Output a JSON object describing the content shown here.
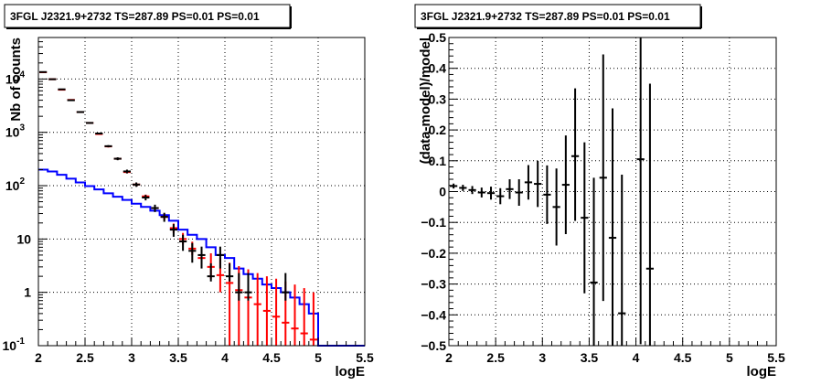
{
  "colors": {
    "data": "#000000",
    "model": "#ff0000",
    "source": "#0000ff",
    "frame": "#000000",
    "grid": "#000000"
  },
  "chart_data": [
    {
      "type": "line",
      "title": "3FGL J2321.9+2732 TS=287.89 PS=0.01 PS=0.01",
      "xlabel": "logE",
      "ylabel": "Nb of counts",
      "xlim": [
        2,
        5.5
      ],
      "ylim": [
        0.1,
        60000
      ],
      "yscale": "log",
      "grid": true,
      "x_ticks": [
        "2",
        "2.5",
        "3",
        "3.5",
        "4",
        "4.5",
        "5",
        "5.5"
      ],
      "y_ticks": [
        {
          "v": 0.1,
          "base": "10",
          "exp": "-1"
        },
        {
          "v": 1,
          "base": "1",
          "exp": ""
        },
        {
          "v": 10,
          "base": "10",
          "exp": ""
        },
        {
          "v": 100,
          "base": "10",
          "exp": "2"
        },
        {
          "v": 1000,
          "base": "10",
          "exp": "3"
        },
        {
          "v": 10000,
          "base": "10",
          "exp": "4"
        }
      ],
      "series": [
        {
          "role": "data",
          "x": [
            2.05,
            2.15,
            2.25,
            2.35,
            2.45,
            2.55,
            2.65,
            2.75,
            2.85,
            2.95,
            3.05,
            3.15,
            3.25,
            3.35,
            3.45,
            3.55,
            3.65,
            3.75,
            3.85,
            3.95,
            4.05,
            4.15,
            4.25,
            4.35,
            4.45,
            4.55,
            4.65
          ],
          "y": [
            13500,
            9900,
            6400,
            4000,
            2400,
            1500,
            950,
            550,
            320,
            185,
            105,
            60,
            38,
            26,
            15,
            9,
            6,
            5,
            2,
            5,
            2,
            1,
            1,
            null,
            null,
            null,
            1
          ],
          "yerr_low": [
            13300,
            9800,
            6320,
            3940,
            2350,
            1460,
            920,
            525,
            300,
            170,
            95,
            53,
            32,
            21,
            11,
            6,
            3.6,
            2.8,
            1.6,
            2.8,
            1.6,
            0.7,
            0.7,
            null,
            null,
            null,
            0.7
          ],
          "yerr_high": [
            13700,
            10000,
            6480,
            4060,
            2450,
            1540,
            980,
            575,
            340,
            200,
            115,
            67,
            44,
            31,
            19,
            12,
            8.4,
            7.2,
            3.5,
            7.2,
            3.5,
            2.3,
            2.3,
            null,
            null,
            null,
            2.3
          ]
        },
        {
          "role": "model",
          "x": [
            2.05,
            2.15,
            2.25,
            2.35,
            2.45,
            2.55,
            2.65,
            2.75,
            2.85,
            2.95,
            3.05,
            3.15,
            3.25,
            3.35,
            3.45,
            3.55,
            3.65,
            3.75,
            3.85,
            3.95,
            4.05,
            4.15,
            4.25,
            4.35,
            4.45,
            4.55,
            4.65,
            4.75,
            4.85,
            4.95
          ],
          "y": [
            13400,
            9900,
            6300,
            4050,
            2400,
            1500,
            930,
            545,
            320,
            180,
            105,
            63,
            38,
            26,
            16,
            10,
            6.6,
            4.4,
            3.0,
            2.1,
            1.5,
            1.1,
            0.8,
            0.6,
            0.45,
            0.35,
            0.27,
            0.21,
            0.17,
            0.13
          ],
          "yerr_low": [
            13250,
            9780,
            6200,
            3980,
            2350,
            1460,
            900,
            520,
            305,
            170,
            98,
            58,
            34,
            22.5,
            13,
            7.9,
            5.0,
            3.0,
            1.8,
            1.0,
            0.1,
            0.1,
            0.1,
            0.1,
            0.1,
            0.1,
            0.1,
            0.1,
            0.1,
            0.1
          ],
          "yerr_high": [
            13550,
            10020,
            6400,
            4120,
            2450,
            1540,
            960,
            570,
            335,
            190,
            112,
            68,
            42,
            30,
            19.5,
            13,
            8.9,
            6.8,
            5.4,
            4.4,
            3.6,
            3.1,
            2.7,
            2.3,
            2.0,
            1.8,
            1.6,
            1.4,
            1.2,
            1.0
          ]
        },
        {
          "role": "source",
          "edges": [
            2.0,
            2.1,
            2.2,
            2.3,
            2.4,
            2.5,
            2.6,
            2.7,
            2.8,
            2.9,
            3.0,
            3.1,
            3.2,
            3.3,
            3.4,
            3.5,
            3.6,
            3.7,
            3.8,
            3.9,
            4.0,
            4.1,
            4.2,
            4.3,
            4.4,
            4.5,
            4.6,
            4.7,
            4.8,
            4.9,
            5.0,
            5.1,
            5.2,
            5.3,
            5.4,
            5.5
          ],
          "y": [
            200,
            185,
            160,
            135,
            115,
            98,
            85,
            72,
            62,
            54,
            46,
            40,
            34,
            28,
            22,
            15,
            12,
            10,
            7,
            5,
            4.4,
            2.8,
            2.2,
            1.8,
            1.4,
            1.2,
            1.0,
            0.8,
            0.6,
            0.4,
            0.1,
            0.1,
            0.1,
            0.1,
            0.1
          ]
        }
      ]
    },
    {
      "type": "scatter",
      "title": "3FGL J2321.9+2732 TS=287.89 PS=0.01 PS=0.01",
      "xlabel": "logE",
      "ylabel": "(data-model)/model",
      "xlim": [
        2,
        5.5
      ],
      "ylim": [
        -0.5,
        0.5
      ],
      "grid": true,
      "x_ticks": [
        "2",
        "2.5",
        "3",
        "3.5",
        "4",
        "4.5",
        "5",
        "5.5"
      ],
      "y_ticks": [
        "-0.5",
        "-0.4",
        "-0.3",
        "-0.2",
        "-0.1",
        "0",
        "0.1",
        "0.2",
        "0.3",
        "0.4",
        "0.5"
      ],
      "series": [
        {
          "role": "data",
          "x": [
            2.05,
            2.15,
            2.25,
            2.35,
            2.45,
            2.55,
            2.65,
            2.75,
            2.85,
            2.95,
            3.05,
            3.15,
            3.25,
            3.35,
            3.45,
            3.55,
            3.65,
            3.75,
            3.85,
            4.05,
            4.15
          ],
          "y": [
            0.018,
            0.012,
            0.005,
            -0.003,
            -0.005,
            -0.015,
            0.008,
            -0.003,
            0.03,
            0.025,
            -0.01,
            -0.05,
            0.022,
            0.115,
            -0.085,
            -0.295,
            0.045,
            -0.15,
            -0.395,
            0.105,
            -0.25
          ],
          "yerr_low": [
            0.008,
            0.01,
            0.013,
            0.016,
            0.021,
            0.026,
            0.032,
            0.043,
            0.056,
            0.075,
            0.095,
            0.125,
            0.16,
            0.21,
            0.245,
            0.35,
            0.4,
            0.4,
            0.45,
            0.6,
            0.6
          ],
          "yerr_high": [
            0.008,
            0.01,
            0.013,
            0.016,
            0.021,
            0.026,
            0.032,
            0.043,
            0.056,
            0.075,
            0.095,
            0.125,
            0.16,
            0.22,
            0.245,
            0.34,
            0.4,
            0.42,
            0.45,
            0.6,
            0.6
          ]
        }
      ]
    }
  ]
}
